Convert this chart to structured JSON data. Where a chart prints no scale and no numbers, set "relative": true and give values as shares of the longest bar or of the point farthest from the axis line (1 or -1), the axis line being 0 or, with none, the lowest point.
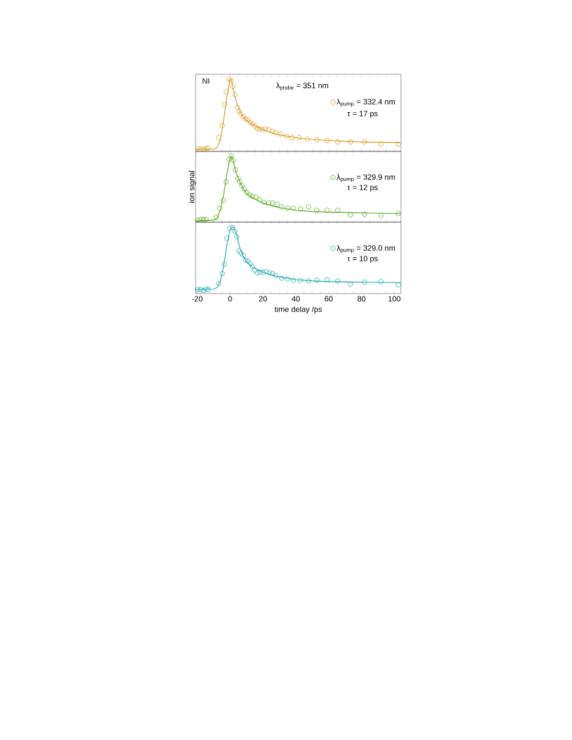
{
  "chart_data": [
    {
      "type": "scatter",
      "relative": true,
      "marker": "circle",
      "legend": "right",
      "tick_labels": false,
      "annotations": [
        "NI",
        "λ$_{probe}$ = 351 nm",
        "τ = 17 ps"
      ],
      "xlim": [
        -21,
        104
      ],
      "xticks": [
        -20,
        {
          "value": -15,
          "label": null
        },
        {
          "value": -10,
          "label": null
        },
        {
          "value": -5,
          "label": null
        },
        0,
        {
          "value": 5,
          "label": null
        },
        {
          "value": 10,
          "label": null
        },
        {
          "value": 15,
          "label": null
        },
        20,
        {
          "value": 25,
          "label": null
        },
        {
          "value": 30,
          "label": null
        },
        {
          "value": 35,
          "label": null
        },
        40,
        {
          "value": 45,
          "label": null
        },
        {
          "value": 50,
          "label": null
        },
        {
          "value": 55,
          "label": null
        },
        60,
        {
          "value": 65,
          "label": null
        },
        {
          "value": 70,
          "label": null
        },
        {
          "value": 75,
          "label": null
        },
        80,
        {
          "value": 85,
          "label": null
        },
        {
          "value": 90,
          "label": null
        },
        {
          "value": 95,
          "label": null
        },
        100
      ],
      "series": [
        {
          "name": "λ$_{pump}$ = 332.4 nm",
          "color": "#dc9a1e",
          "x": [
            -19.7,
            -18.0,
            -16.3,
            -14.6,
            -13.3,
            -6.9,
            -4.8,
            -3.4,
            -2.3,
            -0.6,
            0.6,
            1.6,
            3.0,
            4.4,
            5.4,
            6.5,
            8.0,
            9.4,
            10.8,
            12.2,
            13.6,
            15.1,
            16.5,
            17.9,
            19.6,
            21.5,
            23.6,
            25.8,
            27.9,
            30.7,
            34.3,
            37.8,
            42.1,
            47.0,
            52.7,
            59.1,
            65.5,
            73.3,
            81.8,
            91.8,
            102.4
          ],
          "values": [
            0.04,
            0.03,
            0.03,
            0.04,
            0.05,
            0.19,
            0.36,
            0.65,
            0.83,
            1.0,
            0.98,
            0.9,
            0.79,
            0.61,
            0.56,
            0.52,
            0.48,
            0.45,
            0.44,
            0.4,
            0.38,
            0.35,
            0.32,
            0.31,
            0.3,
            0.31,
            0.3,
            0.28,
            0.26,
            0.24,
            0.21,
            0.19,
            0.19,
            0.17,
            0.16,
            0.15,
            0.13,
            0.13,
            0.13,
            0.1,
            0.1
          ]
        },
        {
          "type": "line",
          "marker": "none",
          "color": "#dc9a1e",
          "x": [
            -21,
            -10,
            -8,
            -6,
            -4,
            -2,
            0,
            1,
            2,
            4,
            6,
            8,
            10,
            14,
            20,
            25,
            30,
            40,
            50,
            60,
            70,
            80,
            90,
            104
          ],
          "values": [
            0.03,
            0.03,
            0.05,
            0.15,
            0.42,
            0.75,
            1.0,
            0.97,
            0.85,
            0.68,
            0.55,
            0.48,
            0.43,
            0.37,
            0.3,
            0.26,
            0.23,
            0.19,
            0.165,
            0.15,
            0.14,
            0.13,
            0.125,
            0.12
          ]
        }
      ]
    },
    {
      "type": "scatter",
      "relative": true,
      "marker": "circle",
      "legend": "right",
      "tick_labels": false,
      "ylabel": "ion signal",
      "annotations": [
        "τ = 12 ps"
      ],
      "xlim": [
        -21,
        104
      ],
      "xticks": [
        -20,
        {
          "value": -15,
          "label": null
        },
        {
          "value": -10,
          "label": null
        },
        {
          "value": -5,
          "label": null
        },
        0,
        {
          "value": 5,
          "label": null
        },
        {
          "value": 10,
          "label": null
        },
        {
          "value": 15,
          "label": null
        },
        20,
        {
          "value": 25,
          "label": null
        },
        {
          "value": 30,
          "label": null
        },
        {
          "value": 35,
          "label": null
        },
        40,
        {
          "value": 45,
          "label": null
        },
        {
          "value": 50,
          "label": null
        },
        {
          "value": 55,
          "label": null
        },
        60,
        {
          "value": 65,
          "label": null
        },
        {
          "value": 70,
          "label": null
        },
        {
          "value": 75,
          "label": null
        },
        80,
        {
          "value": 85,
          "label": null
        },
        {
          "value": 90,
          "label": null
        },
        {
          "value": 95,
          "label": null
        },
        100
      ],
      "series": [
        {
          "name": "λ$_{pump}$ = 329.9 nm",
          "color": "#5aa820",
          "x": [
            -19.7,
            -18.0,
            -16.3,
            -14.6,
            -8.4,
            -6.3,
            -4.1,
            -2.3,
            -0.6,
            0.8,
            1.9,
            3.3,
            4.8,
            5.8,
            7.2,
            8.6,
            10.0,
            11.9,
            13.6,
            15.7,
            17.9,
            20.7,
            23.6,
            25.8,
            28.6,
            31.4,
            35.0,
            38.5,
            42.8,
            47.7,
            52.7,
            59.1,
            65.5,
            73.3,
            81.8,
            91.8,
            102.4
          ],
          "values": [
            0.03,
            0.04,
            0.04,
            0.04,
            0.07,
            0.21,
            0.33,
            0.61,
            0.95,
            1.0,
            0.93,
            0.79,
            0.66,
            0.61,
            0.55,
            0.5,
            0.45,
            0.41,
            0.39,
            0.38,
            0.34,
            0.3,
            0.29,
            0.29,
            0.27,
            0.23,
            0.21,
            0.21,
            0.2,
            0.23,
            0.18,
            0.18,
            0.18,
            0.11,
            0.12,
            0.1,
            0.13
          ]
        },
        {
          "type": "line",
          "marker": "none",
          "color": "#5aa820",
          "x": [
            -21,
            -10,
            -8,
            -6,
            -4,
            -2,
            0,
            1,
            2,
            4,
            6,
            8,
            10,
            14,
            20,
            25,
            30,
            40,
            50,
            60,
            80,
            104
          ],
          "values": [
            0.02,
            0.03,
            0.06,
            0.18,
            0.4,
            0.72,
            0.97,
            1.0,
            0.92,
            0.72,
            0.6,
            0.51,
            0.44,
            0.36,
            0.29,
            0.25,
            0.22,
            0.18,
            0.16,
            0.15,
            0.14,
            0.13
          ]
        }
      ]
    },
    {
      "type": "scatter",
      "relative": true,
      "marker": "circle",
      "legend": "right",
      "tick_labels": "x",
      "xlabel": "time delay /ps",
      "annotations": [
        "τ = 10 ps"
      ],
      "xlim": [
        -21,
        104
      ],
      "xticks": [
        -20,
        {
          "value": -15,
          "label": null
        },
        {
          "value": -10,
          "label": null
        },
        {
          "value": -5,
          "label": null
        },
        0,
        {
          "value": 5,
          "label": null
        },
        {
          "value": 10,
          "label": null
        },
        {
          "value": 15,
          "label": null
        },
        20,
        {
          "value": 25,
          "label": null
        },
        {
          "value": 30,
          "label": null
        },
        {
          "value": 35,
          "label": null
        },
        40,
        {
          "value": 45,
          "label": null
        },
        {
          "value": 50,
          "label": null
        },
        {
          "value": 55,
          "label": null
        },
        60,
        {
          "value": 65,
          "label": null
        },
        {
          "value": 70,
          "label": null
        },
        {
          "value": 75,
          "label": null
        },
        80,
        {
          "value": 85,
          "label": null
        },
        {
          "value": 90,
          "label": null
        },
        {
          "value": 95,
          "label": null
        },
        100
      ],
      "series": [
        {
          "name": "λ$_{pump}$ = 329.0 nm",
          "color": "#20a8a8",
          "x": [
            -19.7,
            -18.0,
            -16.3,
            -14.6,
            -13.3,
            -6.9,
            -4.8,
            -3.4,
            -2.0,
            -0.3,
            1.6,
            3.0,
            4.1,
            5.4,
            6.5,
            8.0,
            9.4,
            10.8,
            12.2,
            13.6,
            15.1,
            16.5,
            18.2,
            20.0,
            21.9,
            23.9,
            25.8,
            27.9,
            31.4,
            35.0,
            38.5,
            42.8,
            47.7,
            52.7,
            59.1,
            65.5,
            73.3,
            81.8,
            91.8,
            102.4
          ],
          "values": [
            0.06,
            0.06,
            0.05,
            0.07,
            0.06,
            0.15,
            0.3,
            0.44,
            0.83,
            0.98,
            0.99,
            0.93,
            0.85,
            0.64,
            0.61,
            0.57,
            0.5,
            0.49,
            0.45,
            0.4,
            0.35,
            0.31,
            0.32,
            0.32,
            0.33,
            0.31,
            0.3,
            0.27,
            0.23,
            0.22,
            0.2,
            0.2,
            0.19,
            0.2,
            0.21,
            0.19,
            0.14,
            0.17,
            0.18,
            0.13
          ]
        },
        {
          "type": "line",
          "marker": "none",
          "color": "#20a8a8",
          "x": [
            -21,
            -10,
            -8,
            -6,
            -4,
            -2,
            0,
            2,
            4,
            6,
            8,
            10,
            14,
            20,
            25,
            30,
            40,
            50,
            60,
            80,
            104
          ],
          "values": [
            0.06,
            0.07,
            0.09,
            0.18,
            0.4,
            0.72,
            0.95,
            1.0,
            0.88,
            0.68,
            0.56,
            0.48,
            0.39,
            0.32,
            0.28,
            0.25,
            0.21,
            0.19,
            0.18,
            0.17,
            0.165
          ]
        }
      ]
    }
  ]
}
